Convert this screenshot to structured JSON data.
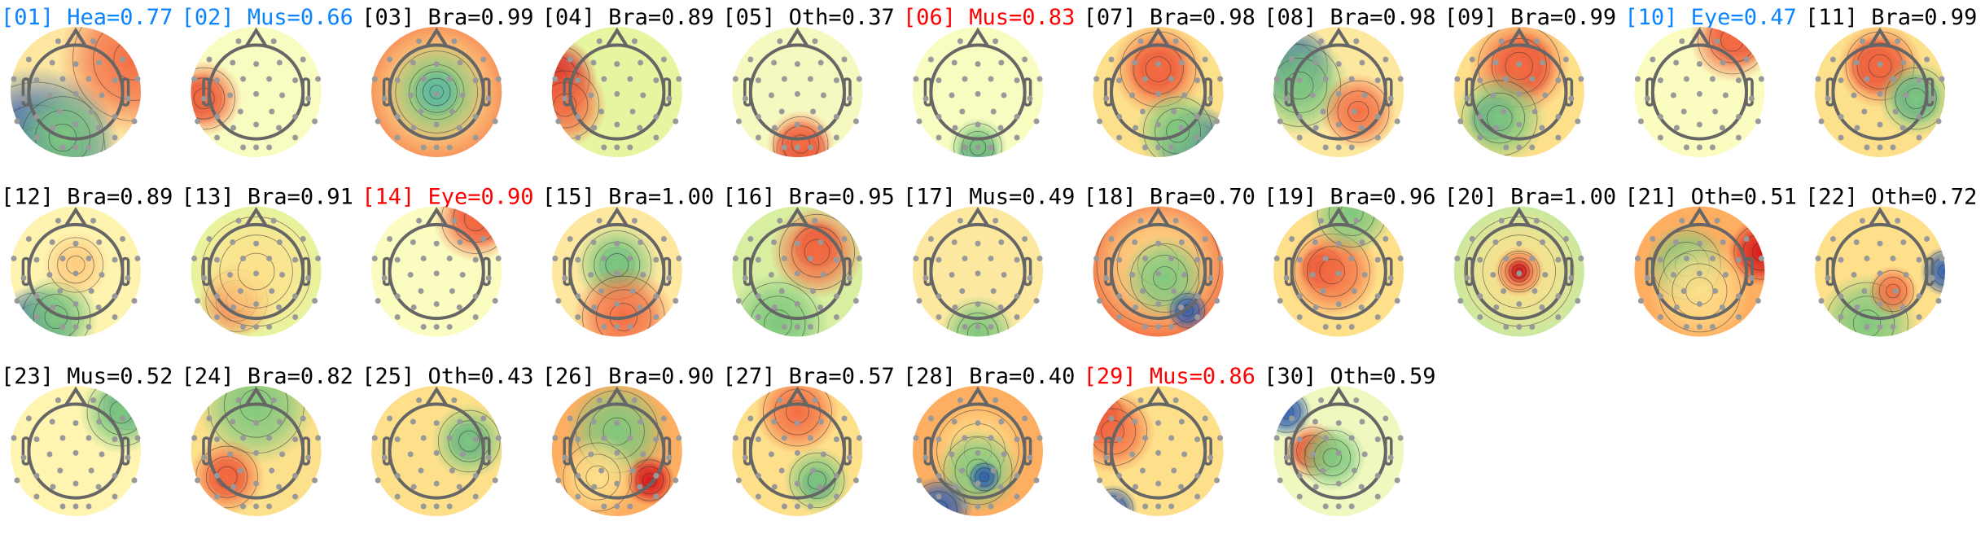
{
  "chart_data": {
    "type": "heatmap",
    "colors": {
      "default": "#000000",
      "blue": "#0a84ff",
      "red": "#ff0000",
      "electrode": "#999999",
      "head_outline": "#666666"
    },
    "components": [
      {
        "title": "[01] Hea=0.77",
        "label": "Hea",
        "prob": 0.77,
        "title_color": "blue"
      },
      {
        "title": "[02] Mus=0.66",
        "label": "Mus",
        "prob": 0.66,
        "title_color": "blue"
      },
      {
        "title": "[03] Bra=0.99",
        "label": "Bra",
        "prob": 0.99,
        "title_color": "default"
      },
      {
        "title": "[04] Bra=0.89",
        "label": "Bra",
        "prob": 0.89,
        "title_color": "default"
      },
      {
        "title": "[05] Oth=0.37",
        "label": "Oth",
        "prob": 0.37,
        "title_color": "default"
      },
      {
        "title": "[06] Mus=0.83",
        "label": "Mus",
        "prob": 0.83,
        "title_color": "red"
      },
      {
        "title": "[07] Bra=0.98",
        "label": "Bra",
        "prob": 0.98,
        "title_color": "default"
      },
      {
        "title": "[08] Bra=0.98",
        "label": "Bra",
        "prob": 0.98,
        "title_color": "default"
      },
      {
        "title": "[09] Bra=0.99",
        "label": "Bra",
        "prob": 0.99,
        "title_color": "default"
      },
      {
        "title": "[10] Eye=0.47",
        "label": "Eye",
        "prob": 0.47,
        "title_color": "blue"
      },
      {
        "title": "[11] Bra=0.99",
        "label": "Bra",
        "prob": 0.99,
        "title_color": "default"
      },
      {
        "title": "[12] Bra=0.89",
        "label": "Bra",
        "prob": 0.89,
        "title_color": "default"
      },
      {
        "title": "[13] Bra=0.91",
        "label": "Bra",
        "prob": 0.91,
        "title_color": "default"
      },
      {
        "title": "[14] Eye=0.90",
        "label": "Eye",
        "prob": 0.9,
        "title_color": "red"
      },
      {
        "title": "[15] Bra=1.00",
        "label": "Bra",
        "prob": 1.0,
        "title_color": "default"
      },
      {
        "title": "[16] Bra=0.95",
        "label": "Bra",
        "prob": 0.95,
        "title_color": "default"
      },
      {
        "title": "[17] Mus=0.49",
        "label": "Mus",
        "prob": 0.49,
        "title_color": "default"
      },
      {
        "title": "[18] Bra=0.70",
        "label": "Bra",
        "prob": 0.7,
        "title_color": "default"
      },
      {
        "title": "[19] Bra=0.96",
        "label": "Bra",
        "prob": 0.96,
        "title_color": "default"
      },
      {
        "title": "[20] Bra=1.00",
        "label": "Bra",
        "prob": 1.0,
        "title_color": "default"
      },
      {
        "title": "[21] Oth=0.51",
        "label": "Oth",
        "prob": 0.51,
        "title_color": "default"
      },
      {
        "title": "[22] Oth=0.72",
        "label": "Oth",
        "prob": 0.72,
        "title_color": "default"
      },
      {
        "title": "[23] Mus=0.52",
        "label": "Mus",
        "prob": 0.52,
        "title_color": "default"
      },
      {
        "title": "[24] Bra=0.82",
        "label": "Bra",
        "prob": 0.82,
        "title_color": "default"
      },
      {
        "title": "[25] Oth=0.43",
        "label": "Oth",
        "prob": 0.43,
        "title_color": "default"
      },
      {
        "title": "[26] Bra=0.90",
        "label": "Bra",
        "prob": 0.9,
        "title_color": "default"
      },
      {
        "title": "[27] Bra=0.57",
        "label": "Bra",
        "prob": 0.57,
        "title_color": "default"
      },
      {
        "title": "[28] Bra=0.40",
        "label": "Bra",
        "prob": 0.4,
        "title_color": "default"
      },
      {
        "title": "[29] Mus=0.86",
        "label": "Mus",
        "prob": 0.86,
        "title_color": "red"
      },
      {
        "title": "[30] Oth=0.59",
        "label": "Oth",
        "prob": 0.59,
        "title_color": "default"
      }
    ]
  }
}
